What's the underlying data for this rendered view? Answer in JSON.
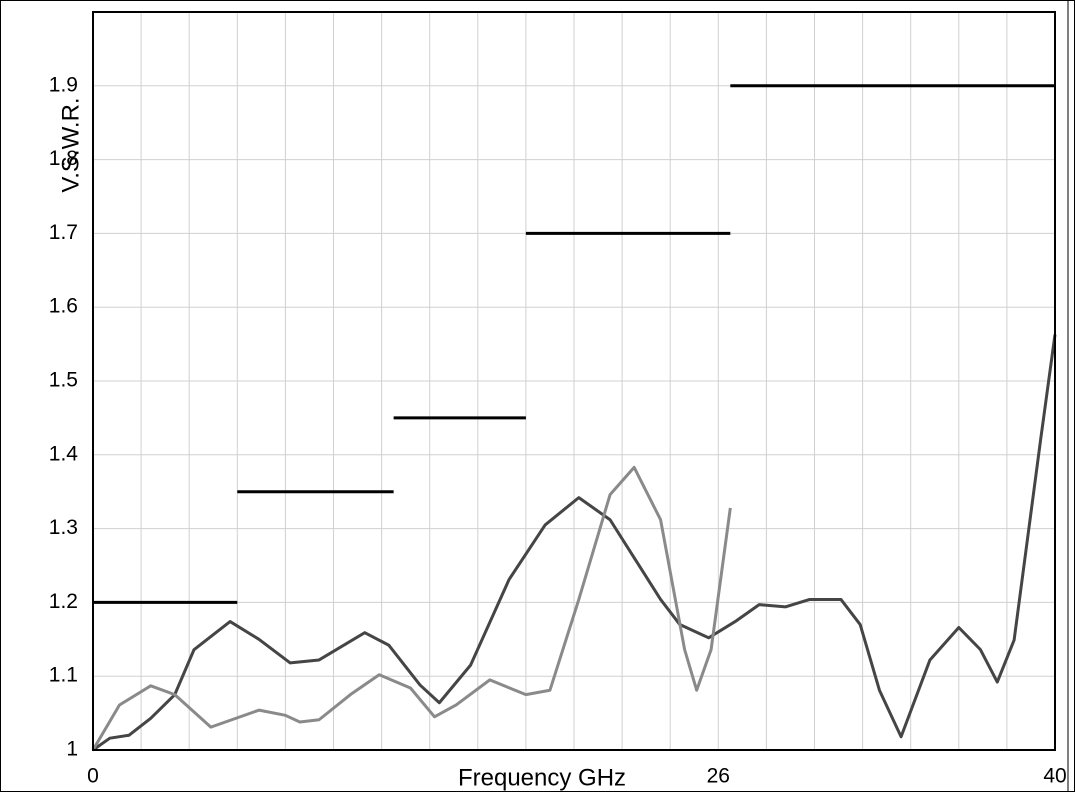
{
  "chart_data": {
    "type": "line",
    "xlabel": "Frequency GHz",
    "ylabel": "V.S.W.R.",
    "xlim": [
      0,
      40
    ],
    "ylim": [
      1,
      2
    ],
    "xticks": [
      0,
      26,
      40
    ],
    "xgrid": [
      2,
      4,
      6,
      8,
      10,
      12,
      14,
      16,
      18,
      20,
      22,
      24,
      26,
      28,
      30,
      32,
      34,
      36,
      38
    ],
    "yticks": [
      1,
      1.1,
      1.2,
      1.3,
      1.4,
      1.5,
      1.6,
      1.7,
      1.8,
      1.9
    ],
    "grid": true,
    "limits": {
      "color": "#000000",
      "segments": [
        {
          "x": [
            0,
            6
          ],
          "value": 1.2
        },
        {
          "x": [
            6,
            12.5
          ],
          "value": 1.35
        },
        {
          "x": [
            12.5,
            18
          ],
          "value": 1.45
        },
        {
          "x": [
            18,
            26.5
          ],
          "value": 1.7
        },
        {
          "x": [
            26.5,
            40
          ],
          "value": 1.9
        }
      ]
    },
    "series": [
      {
        "color": "#454545",
        "x": [
          0,
          0.7,
          1.5,
          2.4,
          3.4,
          4.2,
          5.7,
          6.9,
          8.2,
          9.4,
          11.3,
          12.3,
          13.6,
          14.4,
          15.7,
          17.3,
          18.8,
          20.2,
          21.5,
          23.6,
          24.4,
          25.6,
          26.7,
          27.7,
          28.8,
          29.8,
          31.1,
          31.9,
          32.7,
          33.6,
          34.8,
          36.0,
          36.9,
          37.6,
          38.3,
          39.4,
          40
        ],
        "values": [
          1.0,
          1.016,
          1.02,
          1.043,
          1.075,
          1.136,
          1.174,
          1.15,
          1.118,
          1.122,
          1.159,
          1.142,
          1.088,
          1.064,
          1.115,
          1.231,
          1.305,
          1.342,
          1.312,
          1.204,
          1.17,
          1.152,
          1.174,
          1.197,
          1.194,
          1.204,
          1.204,
          1.17,
          1.081,
          1.018,
          1.122,
          1.166,
          1.136,
          1.092,
          1.149,
          1.42,
          1.563
        ]
      },
      {
        "color": "#8a8a8a",
        "x": [
          0,
          1.1,
          2.4,
          3.4,
          4.9,
          6.9,
          8.0,
          8.6,
          9.4,
          10.7,
          11.9,
          13.2,
          14.2,
          15.1,
          16.5,
          18.0,
          19.0,
          20.2,
          21.5,
          22.5,
          23.6,
          24.6,
          25.1,
          25.7,
          26.5
        ],
        "values": [
          1.0,
          1.061,
          1.087,
          1.075,
          1.031,
          1.054,
          1.047,
          1.038,
          1.041,
          1.075,
          1.102,
          1.084,
          1.045,
          1.061,
          1.095,
          1.075,
          1.081,
          1.204,
          1.346,
          1.383,
          1.312,
          1.136,
          1.081,
          1.136,
          1.328
        ]
      }
    ]
  }
}
